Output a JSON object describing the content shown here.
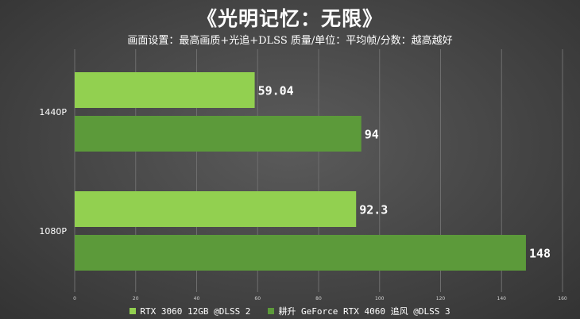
{
  "title": "《光明记忆：无限》",
  "subtitle": "画面设置：最高画质+光追+DLSS 质量/单位：平均帧/分数：越高越好",
  "chart_data": {
    "type": "bar",
    "orientation": "horizontal",
    "categories": [
      "1440P",
      "1080P"
    ],
    "series": [
      {
        "name": "RTX 3060 12GB @DLSS 2",
        "color": "#92d050",
        "values": [
          59.04,
          92.3
        ],
        "labels": [
          "59.04",
          "92.3"
        ]
      },
      {
        "name": "耕升 GeForce RTX 4060 追风 @DLSS 3",
        "color": "#5c9a3a",
        "values": [
          94,
          148
        ],
        "labels": [
          "94",
          "148"
        ]
      }
    ],
    "xlim": [
      0,
      160
    ],
    "xticks": [
      0,
      20,
      40,
      60,
      80,
      100,
      120,
      140,
      160
    ],
    "grid": true,
    "legend_position": "bottom"
  }
}
